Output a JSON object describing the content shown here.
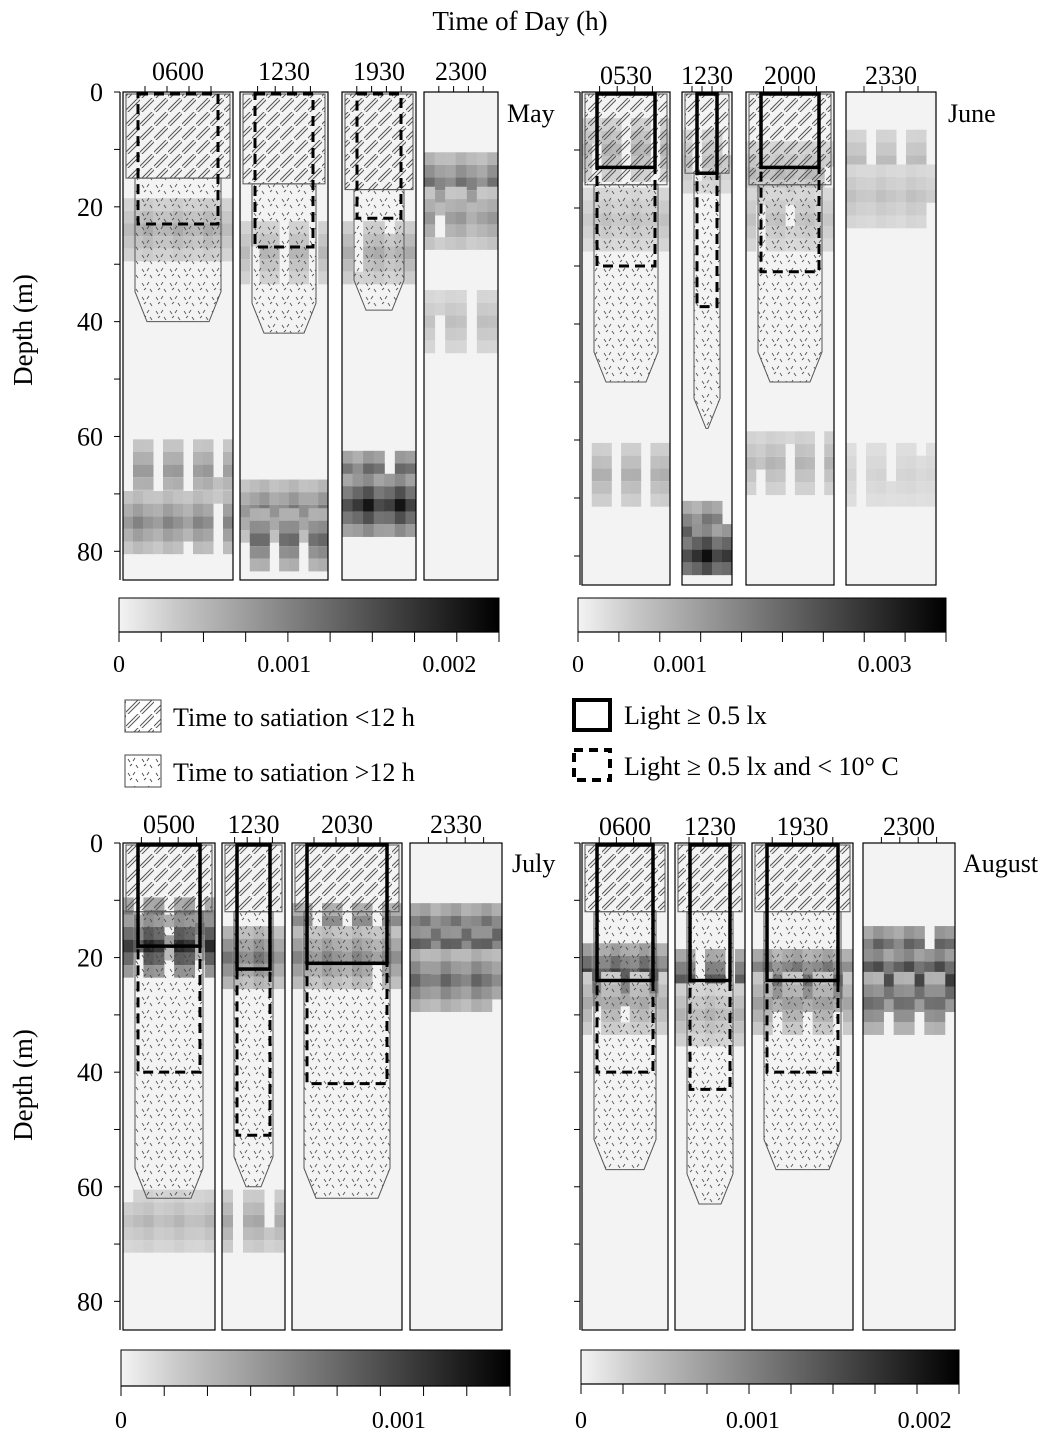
{
  "figure": {
    "title": "Time of Day (h)",
    "ylabel": "Depth (m)"
  },
  "legend": {
    "hatch": "Time to satiation <12 h",
    "dots": "Time to satiation >12 h",
    "light": "Light ≥ 0.5 lx",
    "light_cold": "Light ≥ 0.5 lx and < 10° C"
  },
  "chart_data": [
    {
      "type": "heatmap",
      "month": "May",
      "ylabel": "Depth (m)",
      "ylim": [
        0,
        85
      ],
      "yticks": [
        0,
        20,
        40,
        60,
        80
      ],
      "times": [
        "0600",
        "1230",
        "1930",
        "2300"
      ],
      "colorbar": {
        "ticks": [
          "0",
          "0.001",
          "0.002"
        ],
        "range": [
          0,
          0.0023
        ]
      },
      "panels": [
        {
          "time": "0600",
          "satiation_lt12_max_depth": 15,
          "satiation_gt12_max_depth": 40,
          "light_cold_depth": 23,
          "light_only": false,
          "density_peaks": [
            {
              "depth": 24,
              "value": 0.0006
            },
            {
              "depth": 66,
              "value": 0.0008
            },
            {
              "depth": 75,
              "value": 0.001
            }
          ]
        },
        {
          "time": "1230",
          "satiation_lt12_max_depth": 16,
          "satiation_gt12_max_depth": 42,
          "light_cold_depth": 27,
          "light_only": false,
          "density_peaks": [
            {
              "depth": 28,
              "value": 0.0005
            },
            {
              "depth": 73,
              "value": 0.0011
            },
            {
              "depth": 78,
              "value": 0.0013
            }
          ]
        },
        {
          "time": "1930",
          "satiation_lt12_max_depth": 17,
          "satiation_gt12_max_depth": 38,
          "light_cold_depth": 22,
          "light_only": false,
          "density_peaks": [
            {
              "depth": 28,
              "value": 0.0006
            },
            {
              "depth": 68,
              "value": 0.0018
            },
            {
              "depth": 72,
              "value": 0.0021
            }
          ]
        },
        {
          "time": "2300",
          "satiation_lt12_max_depth": null,
          "satiation_gt12_max_depth": null,
          "light_cold_depth": null,
          "light_only": false,
          "density_peaks": [
            {
              "depth": 16,
              "value": 0.0012
            },
            {
              "depth": 22,
              "value": 0.0008
            },
            {
              "depth": 40,
              "value": 0.0004
            }
          ]
        }
      ]
    },
    {
      "type": "heatmap",
      "month": "June",
      "ylabel": "Depth (m)",
      "ylim": [
        0,
        85
      ],
      "yticks": [
        0,
        20,
        40,
        60,
        80
      ],
      "times": [
        "0530",
        "1230",
        "2000",
        "2330"
      ],
      "colorbar": {
        "ticks": [
          "0",
          "0.001",
          "0.003"
        ],
        "range": [
          0,
          0.0036
        ]
      },
      "panels": [
        {
          "time": "0530",
          "satiation_lt12_max_depth": 16,
          "satiation_gt12_max_depth": 50,
          "light_depth": 13,
          "light_cold_depth": 30,
          "density_peaks": [
            {
              "depth": 10,
              "value": 0.0008
            },
            {
              "depth": 22,
              "value": 0.0006
            },
            {
              "depth": 66,
              "value": 0.0009
            }
          ]
        },
        {
          "time": "1230",
          "satiation_lt12_max_depth": 14,
          "satiation_gt12_max_depth": 58,
          "light_depth": 14,
          "light_cold_depth": 37,
          "density_peaks": [
            {
              "depth": 12,
              "value": 0.0006
            },
            {
              "depth": 76,
              "value": 0.0025
            },
            {
              "depth": 80,
              "value": 0.0034
            }
          ]
        },
        {
          "time": "2000",
          "satiation_lt12_max_depth": 16,
          "satiation_gt12_max_depth": 50,
          "light_depth": 13,
          "light_cold_depth": 31,
          "density_peaks": [
            {
              "depth": 14,
              "value": 0.0007
            },
            {
              "depth": 22,
              "value": 0.0006
            },
            {
              "depth": 64,
              "value": 0.0008
            }
          ]
        },
        {
          "time": "2330",
          "satiation_lt12_max_depth": null,
          "satiation_gt12_max_depth": null,
          "light_depth": null,
          "light_cold_depth": null,
          "density_peaks": [
            {
              "depth": 12,
              "value": 0.0007
            },
            {
              "depth": 18,
              "value": 0.0006
            },
            {
              "depth": 66,
              "value": 0.0003
            }
          ]
        }
      ]
    },
    {
      "type": "heatmap",
      "month": "July",
      "ylabel": "Depth (m)",
      "ylim": [
        0,
        85
      ],
      "yticks": [
        0,
        20,
        40,
        60,
        80
      ],
      "times": [
        "0500",
        "1230",
        "2030",
        "2330"
      ],
      "colorbar": {
        "ticks": [
          "0",
          "0.001"
        ],
        "range": [
          0,
          0.0014
        ]
      },
      "panels": [
        {
          "time": "0500",
          "satiation_lt12_max_depth": 12,
          "satiation_gt12_max_depth": 62,
          "light_depth": 18,
          "light_cold_depth": 40,
          "density_peaks": [
            {
              "depth": 15,
              "value": 0.0009
            },
            {
              "depth": 18,
              "value": 0.0012
            },
            {
              "depth": 66,
              "value": 0.0003
            }
          ]
        },
        {
          "time": "1230",
          "satiation_lt12_max_depth": 12,
          "satiation_gt12_max_depth": 60,
          "light_depth": 22,
          "light_cold_depth": 51,
          "density_peaks": [
            {
              "depth": 20,
              "value": 0.0007
            },
            {
              "depth": 66,
              "value": 0.0004
            }
          ]
        },
        {
          "time": "2030",
          "satiation_lt12_max_depth": 12,
          "satiation_gt12_max_depth": 62,
          "light_depth": 21,
          "light_cold_depth": 42,
          "density_peaks": [
            {
              "depth": 16,
              "value": 0.0008
            },
            {
              "depth": 20,
              "value": 0.0006
            }
          ]
        },
        {
          "time": "2330",
          "satiation_lt12_max_depth": null,
          "satiation_gt12_max_depth": null,
          "light_depth": null,
          "light_cold_depth": null,
          "density_peaks": [
            {
              "depth": 16,
              "value": 0.001
            },
            {
              "depth": 20,
              "value": 0.0012
            },
            {
              "depth": 24,
              "value": 0.0008
            }
          ]
        }
      ]
    },
    {
      "type": "heatmap",
      "month": "August",
      "ylabel": "Depth (m)",
      "ylim": [
        0,
        85
      ],
      "yticks": [
        0,
        20,
        40,
        60,
        80
      ],
      "times": [
        "0600",
        "1230",
        "1930",
        "2300"
      ],
      "colorbar": {
        "ticks": [
          "0",
          "0.001",
          "0.002"
        ],
        "range": [
          0,
          0.0022
        ]
      },
      "panels": [
        {
          "time": "0600",
          "satiation_lt12_max_depth": 12,
          "satiation_gt12_max_depth": 57,
          "light_depth": 24,
          "light_cold_depth": 40,
          "density_peaks": [
            {
              "depth": 23,
              "value": 0.0016
            },
            {
              "depth": 28,
              "value": 0.0006
            }
          ]
        },
        {
          "time": "1230",
          "satiation_lt12_max_depth": 12,
          "satiation_gt12_max_depth": 63,
          "light_depth": 24,
          "light_cold_depth": 43,
          "density_peaks": [
            {
              "depth": 24,
              "value": 0.0014
            },
            {
              "depth": 30,
              "value": 0.0005
            }
          ]
        },
        {
          "time": "1930",
          "satiation_lt12_max_depth": 12,
          "satiation_gt12_max_depth": 57,
          "light_depth": 24,
          "light_cold_depth": 40,
          "density_peaks": [
            {
              "depth": 24,
              "value": 0.0015
            },
            {
              "depth": 28,
              "value": 0.0007
            }
          ]
        },
        {
          "time": "2300",
          "satiation_lt12_max_depth": null,
          "satiation_gt12_max_depth": null,
          "light_depth": null,
          "light_cold_depth": null,
          "density_peaks": [
            {
              "depth": 20,
              "value": 0.0018
            },
            {
              "depth": 24,
              "value": 0.0021
            },
            {
              "depth": 28,
              "value": 0.0012
            }
          ]
        }
      ]
    }
  ]
}
